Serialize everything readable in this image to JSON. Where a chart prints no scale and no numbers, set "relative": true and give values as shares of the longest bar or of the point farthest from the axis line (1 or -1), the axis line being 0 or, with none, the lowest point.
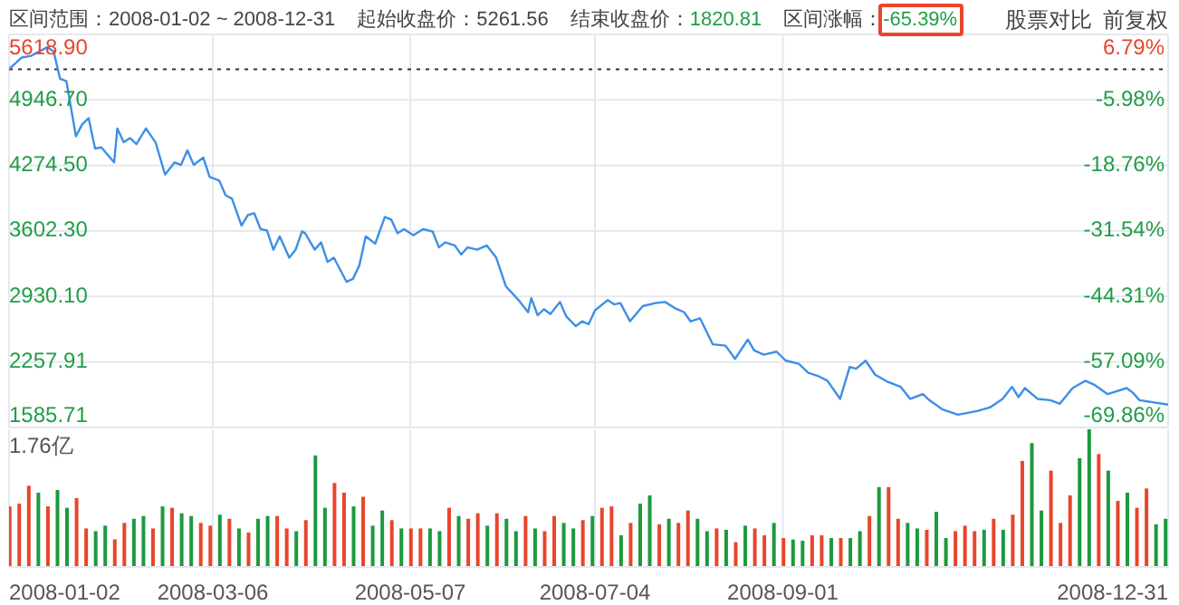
{
  "chart_data": [
    {
      "type": "line",
      "annotations": [
        "区间范围：2008-01-02 ~ 2008-12-31",
        "起始收盘价：5261.56",
        "结束收盘价：1820.81",
        "区间涨幅：-65.39%",
        "股票对比",
        "前复权"
      ],
      "x": [
        "2008-01-02",
        "2008-01-06",
        "2008-01-09",
        "2008-01-14",
        "2008-01-16",
        "2008-01-18",
        "2008-01-20",
        "2008-01-23",
        "2008-01-25",
        "2008-01-27",
        "2008-01-29",
        "2008-01-31",
        "2008-02-04",
        "2008-02-05",
        "2008-02-07",
        "2008-02-09",
        "2008-02-11",
        "2008-02-14",
        "2008-02-17",
        "2008-02-20",
        "2008-02-23",
        "2008-02-25",
        "2008-02-27",
        "2008-02-29",
        "2008-03-03",
        "2008-03-05",
        "2008-03-08",
        "2008-03-10",
        "2008-03-12",
        "2008-03-15",
        "2008-03-17",
        "2008-03-19",
        "2008-03-21",
        "2008-03-23",
        "2008-03-25",
        "2008-03-27",
        "2008-03-30",
        "2008-04-01",
        "2008-04-03",
        "2008-04-04",
        "2008-04-07",
        "2008-04-09",
        "2008-04-11",
        "2008-04-13",
        "2008-04-17",
        "2008-04-19",
        "2008-04-21",
        "2008-04-23",
        "2008-04-26",
        "2008-04-29",
        "2008-05-01",
        "2008-05-03",
        "2008-05-05",
        "2008-05-08",
        "2008-05-11",
        "2008-05-14",
        "2008-05-16",
        "2008-05-18",
        "2008-05-21",
        "2008-05-23",
        "2008-05-25",
        "2008-05-28",
        "2008-05-31",
        "2008-06-03",
        "2008-06-06",
        "2008-06-10",
        "2008-06-13",
        "2008-06-14",
        "2008-06-16",
        "2008-06-18",
        "2008-06-20",
        "2008-06-23",
        "2008-06-25",
        "2008-06-28",
        "2008-06-30",
        "2008-07-02",
        "2008-07-04",
        "2008-07-08",
        "2008-07-10",
        "2008-07-12",
        "2008-07-15",
        "2008-07-19",
        "2008-07-23",
        "2008-07-26",
        "2008-07-29",
        "2008-08-01",
        "2008-08-03",
        "2008-08-06",
        "2008-08-10",
        "2008-08-14",
        "2008-08-17",
        "2008-08-21",
        "2008-08-23",
        "2008-08-26",
        "2008-08-30",
        "2008-09-02",
        "2008-09-06",
        "2008-09-09",
        "2008-09-12",
        "2008-09-15",
        "2008-09-19",
        "2008-09-22",
        "2008-09-24",
        "2008-09-27",
        "2008-09-30",
        "2008-10-04",
        "2008-10-08",
        "2008-10-11",
        "2008-10-15",
        "2008-10-17",
        "2008-10-21",
        "2008-10-26",
        "2008-11-01",
        "2008-11-05",
        "2008-11-09",
        "2008-11-12",
        "2008-11-14",
        "2008-11-16",
        "2008-11-20",
        "2008-11-24",
        "2008-11-27",
        "2008-12-01",
        "2008-12-05",
        "2008-12-08",
        "2008-12-12",
        "2008-12-18",
        "2008-12-20",
        "2008-12-22",
        "2008-12-31"
      ],
      "series": [
        {
          "color": "#3d8fe8",
          "values": [
            5261.56,
            5382,
            5400,
            5488,
            5445,
            5165,
            5140,
            4573,
            4698,
            4760,
            4448,
            4460,
            4306,
            4654,
            4512,
            4555,
            4493,
            4654,
            4512,
            4181,
            4306,
            4280,
            4430,
            4280,
            4355,
            4157,
            4120,
            3970,
            3933,
            3658,
            3765,
            3784,
            3621,
            3608,
            3410,
            3546,
            3328,
            3410,
            3597,
            3578,
            3410,
            3485,
            3285,
            3328,
            3080,
            3111,
            3248,
            3546,
            3472,
            3746,
            3720,
            3578,
            3621,
            3559,
            3621,
            3597,
            3434,
            3485,
            3453,
            3360,
            3434,
            3410,
            3453,
            3328,
            3036,
            2893,
            2768,
            2912,
            2738,
            2799,
            2749,
            2874,
            2725,
            2626,
            2675,
            2645,
            2787,
            2893,
            2849,
            2862,
            2675,
            2831,
            2862,
            2874,
            2812,
            2768,
            2675,
            2706,
            2439,
            2426,
            2290,
            2488,
            2376,
            2333,
            2364,
            2271,
            2239,
            2146,
            2115,
            2065,
            1879,
            2208,
            2189,
            2271,
            2127,
            2053,
            2003,
            1879,
            1928,
            1866,
            1773,
            1717,
            1754,
            1791,
            1879,
            2003,
            1897,
            1990,
            1879,
            1866,
            1829,
            1990,
            2065,
            2021,
            1928,
            1990,
            1940,
            1866,
            1820.81
          ]
        }
      ],
      "xlim": [
        "2008-01-02",
        "2008-12-31"
      ],
      "xticks": [
        "2008-01-02",
        "2008-03-06",
        "2008-05-07",
        "2008-07-04",
        "2008-09-01",
        "2008-12-31"
      ],
      "ylim": [
        1585.71,
        5618.9
      ],
      "yticks": [
        1585.71,
        2257.91,
        {
          "value": 2930.1,
          "label": "2930.10"
        },
        {
          "value": 3602.3,
          "label": "3602.30"
        },
        {
          "value": 4274.5,
          "label": "4274.50"
        },
        {
          "value": 4946.7,
          "label": "4946.70"
        },
        {
          "value": 5618.9,
          "label": "5618.90"
        }
      ],
      "y2lim": [
        -69.86,
        6.79
      ],
      "y2ticks": [
        {
          "value": -69.86,
          "label": "-69.86%"
        },
        {
          "value": -57.09,
          "label": "-57.09%"
        },
        {
          "value": -44.31,
          "label": "-44.31%"
        },
        {
          "value": -31.54,
          "label": "-31.54%"
        },
        {
          "value": -18.76,
          "label": "-18.76%"
        },
        {
          "value": -5.98,
          "label": "-5.98%"
        },
        {
          "value": 6.79,
          "label": "6.79%"
        }
      ],
      "ref_lines": [
        {
          "axis": "y",
          "value": 5261.56,
          "color": "#333333",
          "line_style": "dotted"
        }
      ],
      "grid": true,
      "tick_labels": "y"
    },
    {
      "type": "bar",
      "relative": true,
      "annotations": [
        "1.76亿"
      ],
      "x": [
        "2008-01-02",
        "2008-01-05",
        "2008-01-08",
        "2008-01-11",
        "2008-01-14",
        "2008-01-17",
        "2008-01-20",
        "2008-01-23",
        "2008-01-26",
        "2008-01-29",
        "2008-02-01",
        "2008-02-04",
        "2008-02-07",
        "2008-02-10",
        "2008-02-13",
        "2008-02-16",
        "2008-02-19",
        "2008-02-22",
        "2008-02-25",
        "2008-02-28",
        "2008-03-02",
        "2008-03-05",
        "2008-03-08",
        "2008-03-11",
        "2008-03-14",
        "2008-03-17",
        "2008-03-20",
        "2008-03-23",
        "2008-03-26",
        "2008-03-29",
        "2008-04-01",
        "2008-04-04",
        "2008-04-07",
        "2008-04-10",
        "2008-04-13",
        "2008-04-16",
        "2008-04-19",
        "2008-04-22",
        "2008-04-25",
        "2008-04-28",
        "2008-05-01",
        "2008-05-04",
        "2008-05-07",
        "2008-05-10",
        "2008-05-13",
        "2008-05-16",
        "2008-05-19",
        "2008-05-22",
        "2008-05-25",
        "2008-05-28",
        "2008-05-31",
        "2008-06-03",
        "2008-06-06",
        "2008-06-09",
        "2008-06-12",
        "2008-06-15",
        "2008-06-18",
        "2008-06-21",
        "2008-06-24",
        "2008-06-27",
        "2008-06-30",
        "2008-07-03",
        "2008-07-06",
        "2008-07-09",
        "2008-07-12",
        "2008-07-15",
        "2008-07-18",
        "2008-07-21",
        "2008-07-24",
        "2008-07-27",
        "2008-07-30",
        "2008-08-02",
        "2008-08-05",
        "2008-08-08",
        "2008-08-11",
        "2008-08-14",
        "2008-08-17",
        "2008-08-20",
        "2008-08-23",
        "2008-08-26",
        "2008-08-29",
        "2008-09-01",
        "2008-09-04",
        "2008-09-07",
        "2008-09-10",
        "2008-09-13",
        "2008-09-16",
        "2008-09-19",
        "2008-09-22",
        "2008-09-25",
        "2008-09-28",
        "2008-10-01",
        "2008-10-04",
        "2008-10-07",
        "2008-10-10",
        "2008-10-13",
        "2008-10-16",
        "2008-10-19",
        "2008-10-22",
        "2008-10-25",
        "2008-10-28",
        "2008-10-31",
        "2008-11-03",
        "2008-11-06",
        "2008-11-09",
        "2008-11-12",
        "2008-11-15",
        "2008-11-18",
        "2008-11-21",
        "2008-11-24",
        "2008-11-27",
        "2008-11-30",
        "2008-12-03",
        "2008-12-06",
        "2008-12-09",
        "2008-12-12",
        "2008-12-15",
        "2008-12-18",
        "2008-12-21",
        "2008-12-24",
        "2008-12-27",
        "2008-12-30"
      ],
      "values": [
        0.44,
        0.46,
        0.59,
        0.54,
        0.44,
        0.56,
        0.43,
        0.5,
        0.28,
        0.26,
        0.3,
        0.2,
        0.32,
        0.35,
        0.37,
        0.28,
        0.44,
        0.43,
        0.39,
        0.37,
        0.32,
        0.3,
        0.38,
        0.35,
        0.28,
        0.25,
        0.35,
        0.37,
        0.37,
        0.28,
        0.26,
        0.34,
        0.81,
        0.43,
        0.61,
        0.54,
        0.44,
        0.51,
        0.3,
        0.41,
        0.34,
        0.28,
        0.28,
        0.28,
        0.28,
        0.26,
        0.43,
        0.37,
        0.35,
        0.39,
        0.3,
        0.39,
        0.35,
        0.26,
        0.37,
        0.28,
        0.26,
        0.37,
        0.32,
        0.28,
        0.34,
        0.37,
        0.43,
        0.44,
        0.23,
        0.32,
        0.46,
        0.52,
        0.31,
        0.35,
        0.32,
        0.41,
        0.35,
        0.26,
        0.28,
        0.27,
        0.18,
        0.3,
        0.28,
        0.23,
        0.32,
        0.21,
        0.2,
        0.19,
        0.23,
        0.23,
        0.21,
        0.21,
        0.21,
        0.26,
        0.37,
        0.58,
        0.58,
        0.35,
        0.32,
        0.28,
        0.27,
        0.4,
        0.21,
        0.26,
        0.3,
        0.26,
        0.27,
        0.35,
        0.27,
        0.38,
        0.77,
        0.9,
        0.41,
        0.7,
        0.32,
        0.52,
        0.79,
        1,
        0.82,
        0.7,
        0.48,
        0.54,
        0.43,
        0.57,
        0.31,
        0.35
      ],
      "colors": [
        "#e8452c",
        "#e8452c",
        "#e8452c",
        "#1b9a3e",
        "#e8452c",
        "#1b9a3e",
        "#1b9a3e",
        "#e8452c",
        "#e8452c",
        "#1b9a3e",
        "#1b9a3e",
        "#e8452c",
        "#e8452c",
        "#1b9a3e",
        "#1b9a3e",
        "#e8452c",
        "#1b9a3e",
        "#e8452c",
        "#1b9a3e",
        "#1b9a3e",
        "#e8452c",
        "#e8452c",
        "#1b9a3e",
        "#e8452c",
        "#1b9a3e",
        "#e8452c",
        "#1b9a3e",
        "#1b9a3e",
        "#e8452c",
        "#e8452c",
        "#1b9a3e",
        "#e8452c",
        "#1b9a3e",
        "#1b9a3e",
        "#e8452c",
        "#e8452c",
        "#1b9a3e",
        "#e8452c",
        "#1b9a3e",
        "#1b9a3e",
        "#e8452c",
        "#1b9a3e",
        "#e8452c",
        "#e8452c",
        "#1b9a3e",
        "#1b9a3e",
        "#e8452c",
        "#1b9a3e",
        "#e8452c",
        "#e8452c",
        "#1b9a3e",
        "#e8452c",
        "#1b9a3e",
        "#1b9a3e",
        "#e8452c",
        "#1b9a3e",
        "#e8452c",
        "#e8452c",
        "#1b9a3e",
        "#1b9a3e",
        "#e8452c",
        "#1b9a3e",
        "#e8452c",
        "#e8452c",
        "#1b9a3e",
        "#e8452c",
        "#1b9a3e",
        "#1b9a3e",
        "#e8452c",
        "#1b9a3e",
        "#e8452c",
        "#e8452c",
        "#1b9a3e",
        "#1b9a3e",
        "#e8452c",
        "#1b9a3e",
        "#e8452c",
        "#1b9a3e",
        "#e8452c",
        "#e8452c",
        "#1b9a3e",
        "#e8452c",
        "#1b9a3e",
        "#1b9a3e",
        "#e8452c",
        "#e8452c",
        "#1b9a3e",
        "#e8452c",
        "#1b9a3e",
        "#1b9a3e",
        "#e8452c",
        "#1b9a3e",
        "#e8452c",
        "#e8452c",
        "#1b9a3e",
        "#1b9a3e",
        "#e8452c",
        "#1b9a3e",
        "#1b9a3e",
        "#e8452c",
        "#e8452c",
        "#e8452c",
        "#1b9a3e",
        "#e8452c",
        "#1b9a3e",
        "#e8452c",
        "#e8452c",
        "#1b9a3e",
        "#1b9a3e",
        "#e8452c",
        "#e8452c",
        "#e8452c",
        "#1b9a3e",
        "#1b9a3e",
        "#e8452c",
        "#1b9a3e",
        "#e8452c",
        "#1b9a3e",
        "#e8452c",
        "#e8452c",
        "#1b9a3e",
        "#1b9a3e"
      ],
      "xlim": [
        "2008-01-02",
        "2008-12-31"
      ],
      "xticks": [
        "2008-01-02",
        "2008-03-06",
        "2008-05-07",
        "2008-07-04",
        "2008-09-01",
        "2008-12-31"
      ],
      "grid": "x",
      "tick_labels": "x"
    }
  ]
}
